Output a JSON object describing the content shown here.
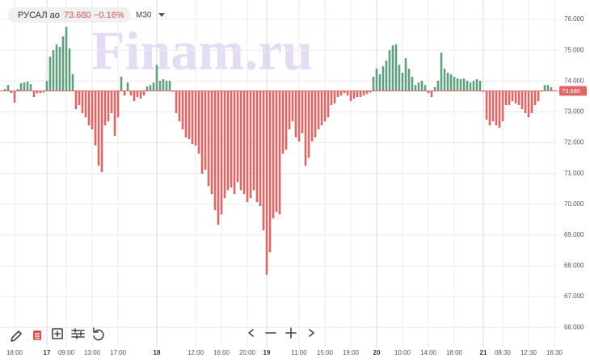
{
  "chart_data": {
    "type": "baseline-histogram",
    "header": {
      "symbol": "РУСАЛ ао",
      "change": "−0.16%",
      "timeframe": "M30"
    },
    "watermark": "Finam.ru",
    "baseline": {
      "value": 73.68,
      "label": "73.680"
    },
    "up_color": "#5f9f80",
    "down_color": "#e06666",
    "ylim": [
      65.6,
      76.5
    ],
    "yticks": [
      {
        "value": 76,
        "label": "76.000"
      },
      {
        "value": 75,
        "label": "75.000"
      },
      {
        "value": 74,
        "label": "74.000"
      },
      {
        "value": 73,
        "label": "73.000"
      },
      {
        "value": 72,
        "label": "72.000"
      },
      {
        "value": 71,
        "label": "71.000"
      },
      {
        "value": 70,
        "label": "70.000"
      },
      {
        "value": 69,
        "label": "69.000"
      },
      {
        "value": 68,
        "label": "68.000"
      },
      {
        "value": 67,
        "label": "67.000"
      },
      {
        "value": 66,
        "label": "66.000"
      }
    ],
    "grid": true,
    "categories": [
      null,
      null,
      null,
      "18:00",
      null,
      null,
      null,
      null,
      null,
      null,
      null,
      null,
      null,
      "17",
      null,
      null,
      null,
      null,
      null,
      "09:00",
      null,
      null,
      null,
      null,
      null,
      null,
      null,
      "13:00",
      null,
      null,
      null,
      null,
      null,
      null,
      null,
      "17:00",
      null,
      null,
      null,
      null,
      null,
      null,
      null,
      null,
      null,
      null,
      null,
      "18",
      null,
      null,
      null,
      null,
      null,
      null,
      null,
      null,
      null,
      null,
      null,
      "12:00",
      null,
      null,
      null,
      null,
      null,
      null,
      null,
      "16:00",
      null,
      null,
      null,
      null,
      null,
      null,
      null,
      "20:00",
      null,
      null,
      null,
      null,
      null,
      "19",
      null,
      null,
      null,
      null,
      null,
      null,
      null,
      null,
      null,
      "11:00",
      null,
      null,
      null,
      null,
      null,
      null,
      null,
      "15:00",
      null,
      null,
      null,
      null,
      null,
      null,
      null,
      "19:00",
      null,
      null,
      null,
      null,
      null,
      null,
      null,
      "20",
      null,
      null,
      null,
      null,
      null,
      null,
      null,
      "10:00",
      null,
      null,
      null,
      null,
      null,
      null,
      null,
      "14:00",
      null,
      null,
      null,
      null,
      null,
      null,
      null,
      "18:00",
      null,
      null,
      null,
      null,
      null,
      null,
      null,
      null,
      "21",
      null,
      null,
      null,
      null,
      null,
      "08:30",
      null,
      null,
      null,
      null,
      null,
      null,
      null,
      "12:30",
      null,
      null,
      null,
      null,
      null,
      null,
      null,
      "16:30"
    ],
    "values": [
      73.74,
      73.87,
      73.61,
      73.3,
      73.74,
      73.93,
      73.95,
      73.98,
      73.9,
      73.48,
      73.6,
      73.61,
      73.63,
      74.0,
      74.79,
      75.0,
      75.19,
      75.11,
      75.45,
      75.76,
      75.06,
      74.22,
      73.09,
      73.22,
      72.96,
      72.82,
      72.56,
      72.43,
      71.91,
      71.25,
      71.04,
      72.56,
      72.69,
      72.96,
      72.22,
      72.82,
      74.14,
      73.53,
      73.95,
      73.53,
      73.35,
      73.48,
      73.43,
      73.53,
      73.82,
      73.87,
      73.95,
      74.53,
      74.01,
      74.06,
      74.01,
      74.01,
      73.65,
      72.96,
      72.69,
      72.43,
      72.17,
      72.12,
      71.96,
      71.91,
      71.64,
      70.99,
      71.12,
      70.59,
      70.33,
      69.81,
      69.33,
      69.67,
      70.2,
      70.46,
      70.54,
      70.33,
      70.72,
      70.46,
      70.33,
      70.07,
      70.2,
      70.46,
      70.07,
      69.94,
      69.15,
      67.71,
      68.44,
      69.54,
      69.75,
      69.67,
      71.64,
      71.77,
      72.43,
      72.69,
      72.17,
      72.04,
      72.3,
      71.25,
      71.51,
      72.04,
      72.17,
      72.43,
      72.56,
      72.69,
      72.82,
      73.22,
      73.27,
      73.48,
      73.53,
      73.61,
      73.53,
      73.35,
      73.43,
      73.48,
      73.48,
      73.53,
      73.58,
      73.63,
      74.14,
      74.4,
      74.22,
      74.48,
      74.66,
      75.0,
      75.16,
      75.19,
      74.53,
      74.27,
      74.74,
      74.4,
      74.14,
      73.87,
      73.95,
      74.01,
      73.87,
      73.61,
      73.48,
      73.8,
      74.01,
      74.92,
      74.4,
      74.27,
      74.22,
      74.14,
      74.08,
      74.06,
      74.08,
      74.01,
      73.95,
      74.01,
      74.06,
      74.01,
      73.65,
      72.75,
      72.56,
      72.69,
      72.56,
      72.48,
      72.69,
      73.22,
      73.22,
      73.35,
      73.27,
      73.22,
      73.09,
      72.96,
      72.82,
      72.96,
      73.22,
      73.35,
      73.65,
      73.87,
      73.87,
      73.8,
      73.7
    ]
  }
}
